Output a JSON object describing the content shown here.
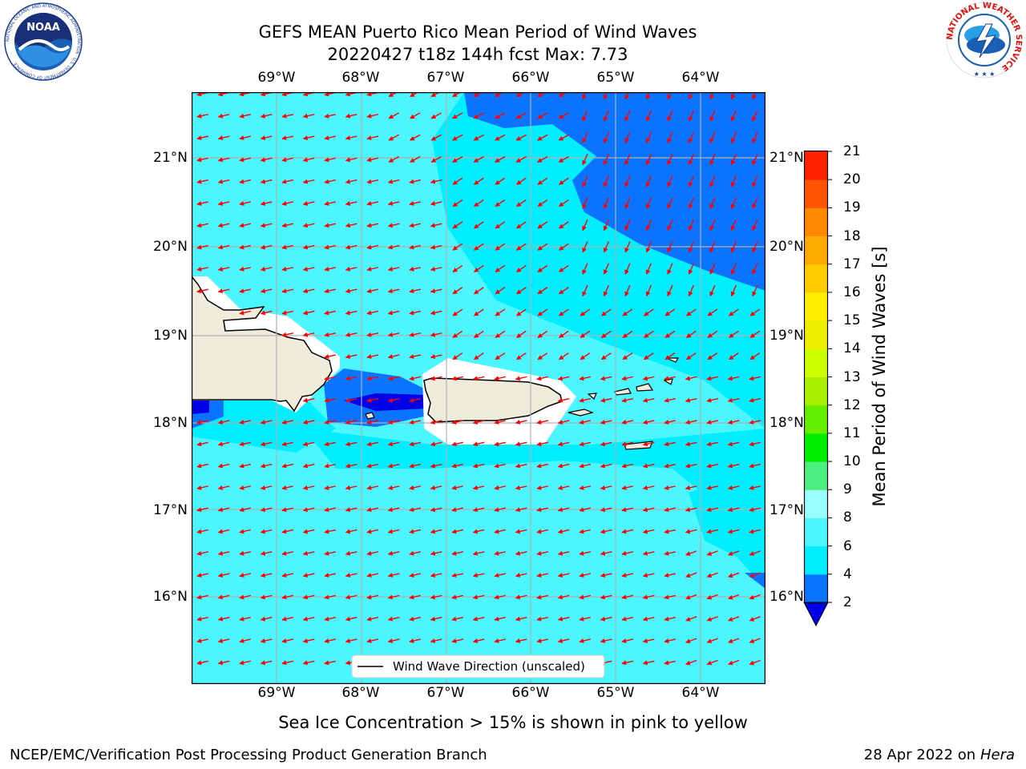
{
  "title": {
    "line1": "GEFS MEAN Puerto Rico Mean Period of Wind Waves",
    "line2": "20220427 t18z 144h fcst   Max: 7.73"
  },
  "logos": {
    "noaa_text": "NOAA",
    "noaa_ring": "NATIONAL OCEANIC AND ATMOSPHERIC ADMINISTRATION · U.S. DEPARTMENT OF COMMERCE",
    "nws_ring": "NATIONAL WEATHER SERVICE"
  },
  "map": {
    "lon_ticks": [
      "69°W",
      "68°W",
      "67°W",
      "66°W",
      "65°W",
      "64°W"
    ],
    "lat_ticks": [
      "21°N",
      "20°N",
      "19°N",
      "18°N",
      "17°N",
      "16°N"
    ],
    "legend_label": "Wind Wave Direction (unscaled)",
    "arrow_color": "#ff0000",
    "land_color": "#efecdc",
    "grid_color": "#b0b0b0"
  },
  "colorbar": {
    "label": "Mean Period of Wind Waves [s]",
    "ticks": [
      "2",
      "4",
      "6",
      "8",
      "9",
      "10",
      "11",
      "12",
      "13",
      "14",
      "15",
      "16",
      "17",
      "18",
      "19",
      "20",
      "21"
    ],
    "colors": [
      "#0000e6",
      "#0a74ff",
      "#00eeff",
      "#4cf6ff",
      "#99ffff",
      "#4cee80",
      "#00ee00",
      "#66ee00",
      "#aaee00",
      "#ccff00",
      "#eeee00",
      "#ffee00",
      "#ffcc00",
      "#ffaa00",
      "#ff8800",
      "#ff5500",
      "#ff2200",
      "#ff0000"
    ]
  },
  "note": "Sea Ice Concentration > 15% is shown in pink to yellow",
  "footer": {
    "left": "NCEP/EMC/Verification Post Processing Product Generation Branch",
    "date": "28 Apr 2022 on ",
    "host": "Hera"
  }
}
